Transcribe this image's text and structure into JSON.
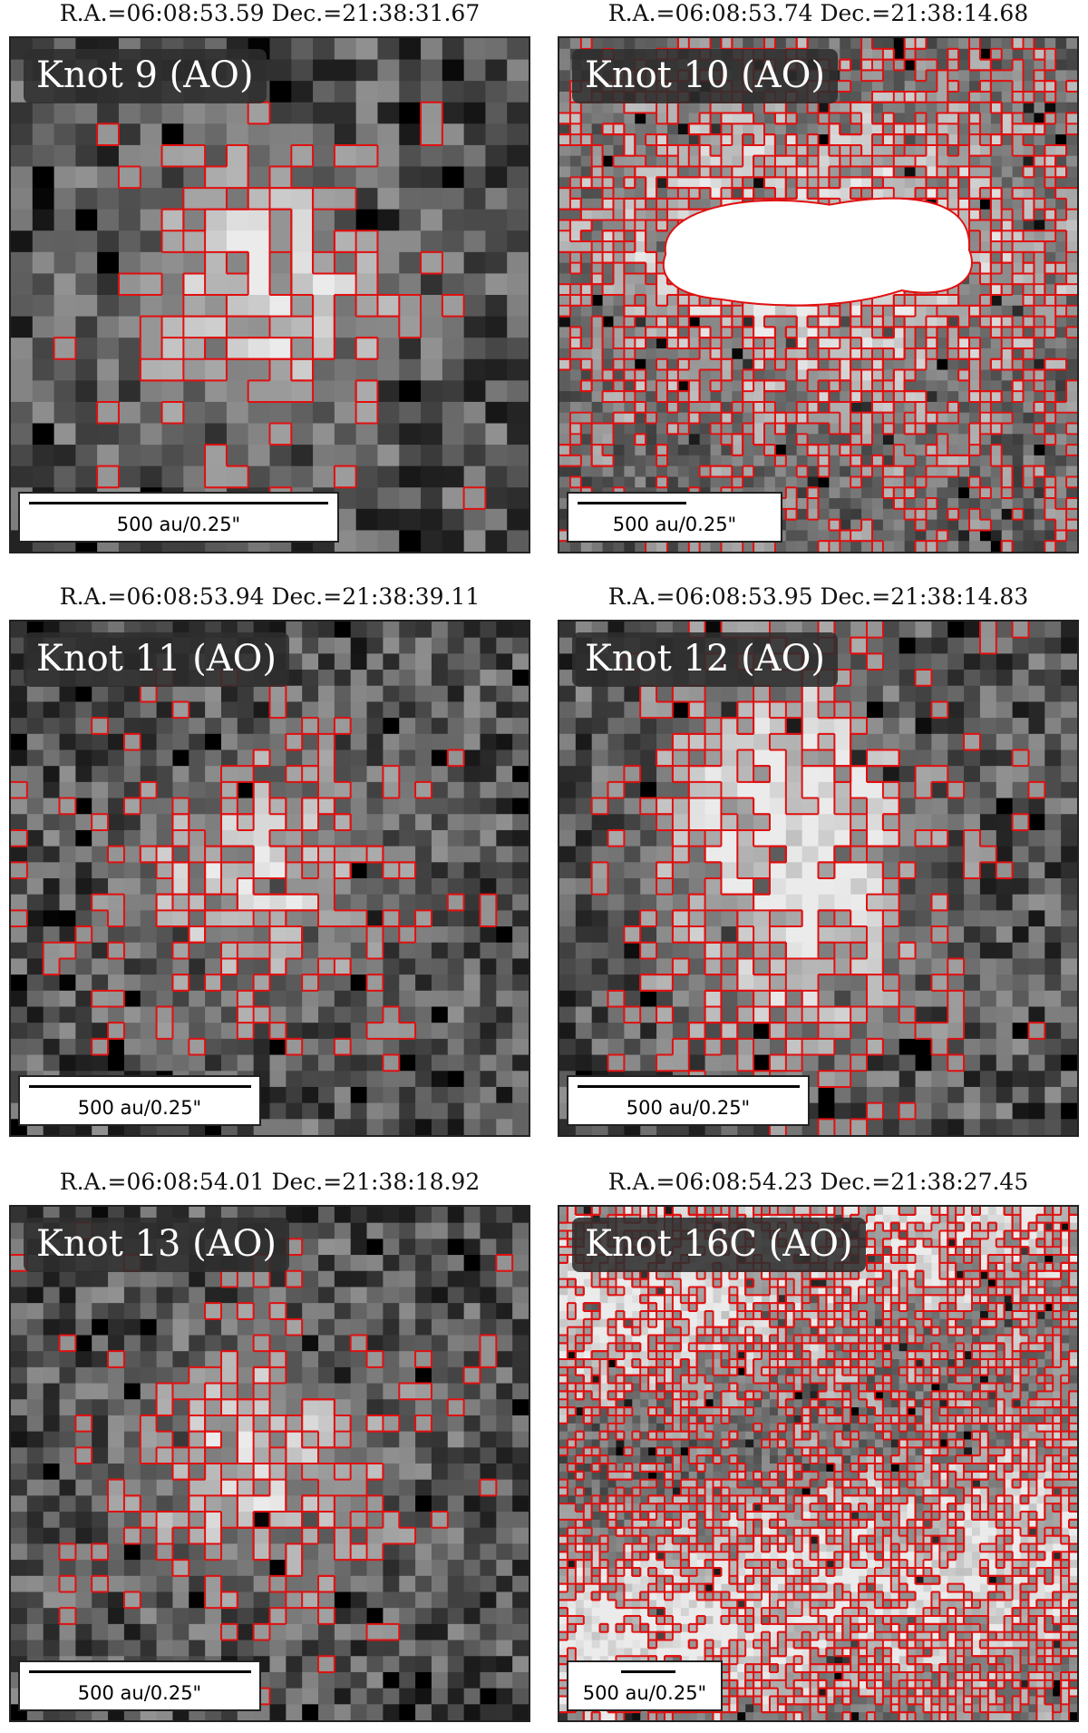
{
  "panels": [
    {
      "coord": "R.A.=06:08:53.59 Dec.=21:38:31.67",
      "label": "Knot 9 (AO)",
      "scale": "500 au/0.25\"",
      "grid": 24,
      "seed": 11,
      "bright": 0.55,
      "style": "blob"
    },
    {
      "coord": "R.A.=06:08:53.74 Dec.=21:38:14.68",
      "label": "Knot 10 (AO)",
      "scale": "500 au/0.25\"",
      "grid": 48,
      "seed": 23,
      "bright": 0.6,
      "style": "ring"
    },
    {
      "coord": "R.A.=06:08:53.94 Dec.=21:38:39.11",
      "label": "Knot 11 (AO)",
      "scale": "500 au/0.25\"",
      "grid": 32,
      "seed": 37,
      "bright": 0.5,
      "style": "blob"
    },
    {
      "coord": "R.A.=06:08:53.95 Dec.=21:38:14.83",
      "label": "Knot 12 (AO)",
      "scale": "500 au/0.25\"",
      "grid": 32,
      "seed": 41,
      "bright": 0.7,
      "style": "oval"
    },
    {
      "coord": "R.A.=06:08:54.01 Dec.=21:38:18.92",
      "label": "Knot 13 (AO)",
      "scale": "500 au/0.25\"",
      "grid": 32,
      "seed": 53,
      "bright": 0.5,
      "style": "blob"
    },
    {
      "coord": "R.A.=06:08:54.23 Dec.=21:38:27.45",
      "label": "Knot 16C (AO)",
      "scale": "500 au/0.25\"",
      "grid": 64,
      "seed": 67,
      "bright": 0.75,
      "style": "bands"
    }
  ],
  "colors": {
    "contour": "#e01010",
    "label_bg": "#2d2d2d"
  }
}
